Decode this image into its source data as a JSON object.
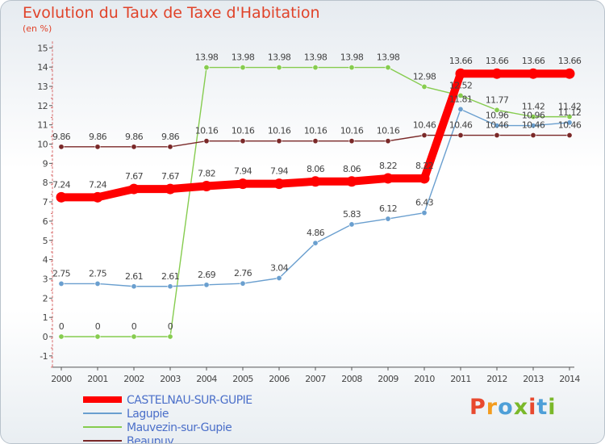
{
  "title": "Evolution du Taux de Taxe d'Habitation",
  "unit_label": "(en %)",
  "logo": {
    "text": "Proxiti",
    "colors": [
      "#e8492e",
      "#f39c1f",
      "#4e9fd8",
      "#7ab82a",
      "#e8492e",
      "#4e9fd8",
      "#7ab82a"
    ]
  },
  "chart_data": {
    "type": "line",
    "x": [
      "2000",
      "2001",
      "2002",
      "2003",
      "2004",
      "2005",
      "2006",
      "2007",
      "2008",
      "2009",
      "2010",
      "2011",
      "2012",
      "2013",
      "2014"
    ],
    "ylim": [
      -1,
      15
    ],
    "yticks": [
      "-1",
      "0",
      "1",
      "2",
      "3",
      "4",
      "5",
      "6",
      "7",
      "8",
      "9",
      "10",
      "11",
      "12",
      "13",
      "14",
      "15"
    ],
    "grid": false,
    "legend_position": "bottom-left",
    "series": [
      {
        "name": "CASTELNAU-SUR-GUPIE",
        "color": "#ff0000",
        "values": [
          7.24,
          7.24,
          7.67,
          7.67,
          7.82,
          7.94,
          7.94,
          8.06,
          8.06,
          8.22,
          8.22,
          13.66,
          13.66,
          13.66,
          13.66
        ],
        "labels": [
          "7.24",
          "7.24",
          "7.67",
          "7.67",
          "7.82",
          "7.94",
          "7.94",
          "8.06",
          "8.06",
          "8.22",
          "8.22",
          "13.66",
          "13.66",
          "13.66",
          "13.66"
        ]
      },
      {
        "name": "Lagupie",
        "color": "#6a9fcf",
        "values": [
          2.75,
          2.75,
          2.61,
          2.61,
          2.69,
          2.76,
          3.04,
          4.86,
          5.83,
          6.12,
          6.43,
          11.81,
          10.96,
          10.96,
          11.12
        ],
        "labels": [
          "2.75",
          "2.75",
          "2.61",
          "2.61",
          "2.69",
          "2.76",
          "3.04",
          "4.86",
          "5.83",
          "6.12",
          "6.43",
          "11.81",
          "10.96",
          "10.96",
          "11.12"
        ]
      },
      {
        "name": "Mauvezin-sur-Gupie",
        "color": "#86cc4f",
        "values": [
          0,
          0,
          0,
          0,
          13.98,
          13.98,
          13.98,
          13.98,
          13.98,
          13.98,
          12.98,
          12.52,
          11.77,
          11.42,
          11.42
        ],
        "labels": [
          "0",
          "0",
          "0",
          "0",
          "13.98",
          "13.98",
          "13.98",
          "13.98",
          "13.98",
          "13.98",
          "12.98",
          "12.52",
          "11.77",
          "11.42",
          "11.42"
        ]
      },
      {
        "name": "Beaupuy",
        "color": "#7a2828",
        "values": [
          9.86,
          9.86,
          9.86,
          9.86,
          10.16,
          10.16,
          10.16,
          10.16,
          10.16,
          10.16,
          10.46,
          10.46,
          10.46,
          10.46,
          10.46
        ],
        "labels": [
          "9.86",
          "9.86",
          "9.86",
          "9.86",
          "10.16",
          "10.16",
          "10.16",
          "10.16",
          "10.16",
          "10.16",
          "10.46",
          "10.46",
          "10.46",
          "10.46",
          "10.46"
        ]
      }
    ]
  }
}
